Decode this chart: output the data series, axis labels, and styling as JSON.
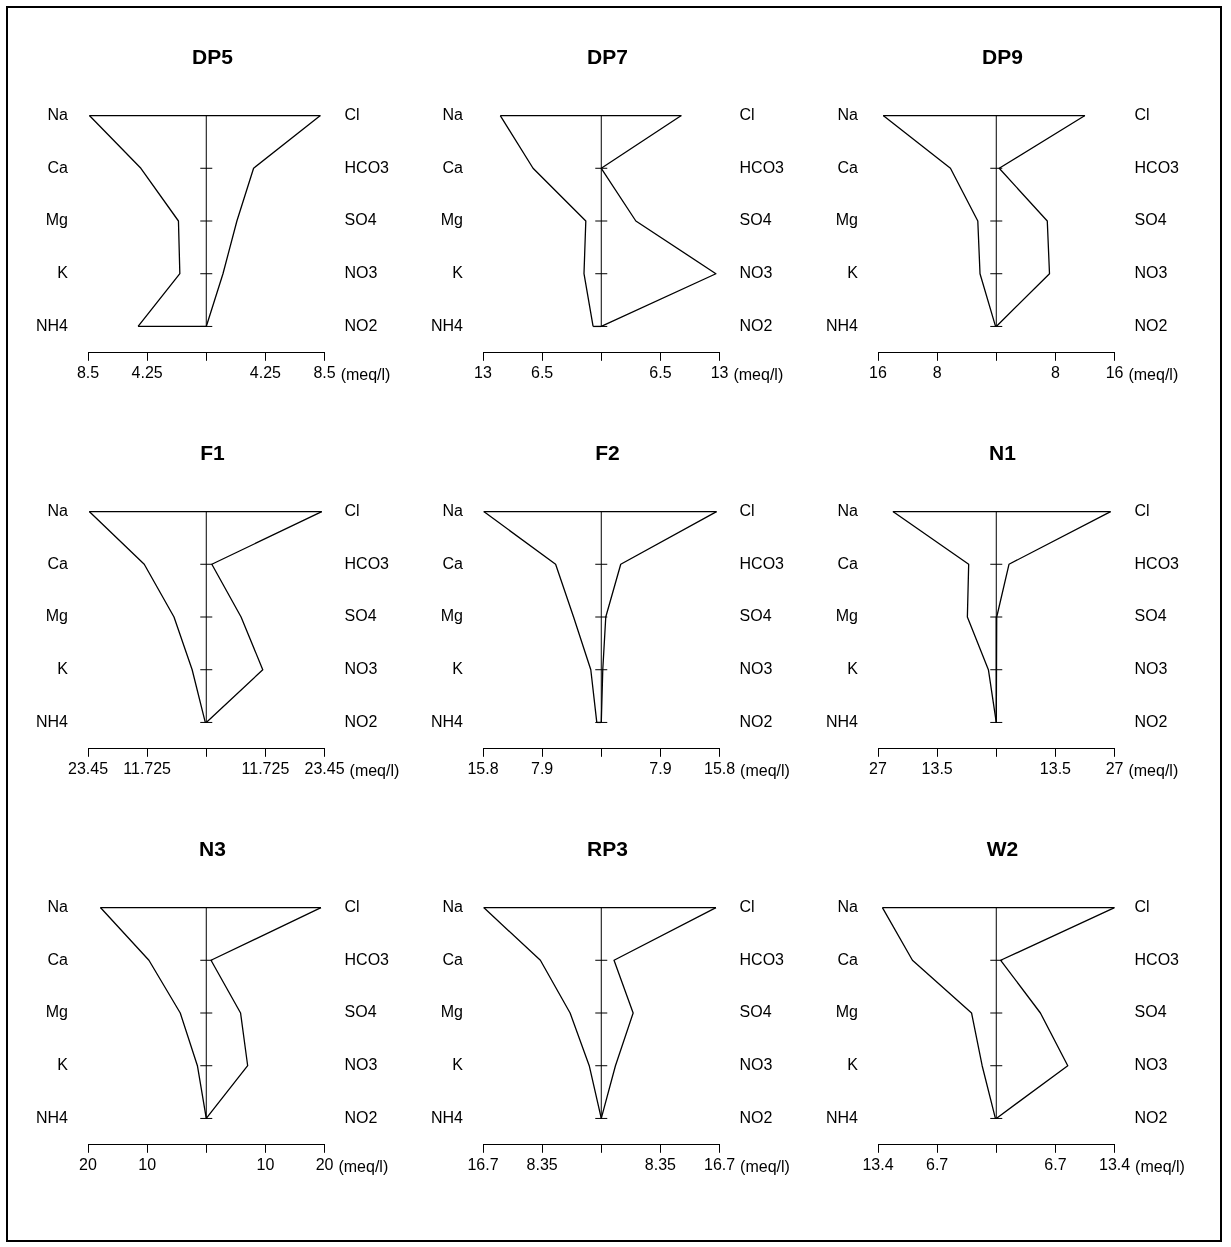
{
  "chart_data": [
    {
      "type": "line",
      "orientation": "horizontal",
      "title": "DP5",
      "xlabel": "(meq/l)",
      "marker": "none",
      "categories": [
        "Na",
        "Ca",
        "Mg",
        "K",
        "NH4"
      ],
      "y2_categories": [
        "Cl",
        "HCO3",
        "SO4",
        "NO3",
        "NO2"
      ],
      "xlim": [
        -8.5,
        8.5
      ],
      "xticks": [
        {
          "value": -8.5,
          "label": "8.5"
        },
        {
          "value": -4.25,
          "label": "4.25"
        },
        {
          "value": 0,
          "label": null
        },
        4.25,
        8.5
      ],
      "series": [
        {
          "color": "#000000",
          "values": [
            -8.4,
            -4.7,
            -2.0,
            -1.9,
            -4.9
          ]
        },
        {
          "color": "#000000",
          "values": [
            8.2,
            3.4,
            2.2,
            1.2,
            0
          ]
        }
      ]
    },
    {
      "type": "line",
      "orientation": "horizontal",
      "title": "DP7",
      "xlabel": "(meq/l)",
      "marker": "none",
      "categories": [
        "Na",
        "Ca",
        "Mg",
        "K",
        "NH4"
      ],
      "y2_categories": [
        "Cl",
        "HCO3",
        "SO4",
        "NO3",
        "NO2"
      ],
      "xlim": [
        -13,
        13
      ],
      "xticks": [
        {
          "value": -13,
          "label": "13"
        },
        {
          "value": -6.5,
          "label": "6.5"
        },
        {
          "value": 0,
          "label": null
        },
        6.5,
        13
      ],
      "series": [
        {
          "color": "#000000",
          "values": [
            -11.1,
            -7.5,
            -1.7,
            -1.9,
            -0.9
          ]
        },
        {
          "color": "#000000",
          "values": [
            8.8,
            0,
            3.8,
            12.6,
            0
          ]
        }
      ]
    },
    {
      "type": "line",
      "orientation": "horizontal",
      "title": "DP9",
      "xlabel": "(meq/l)",
      "marker": "none",
      "categories": [
        "Na",
        "Ca",
        "Mg",
        "K",
        "NH4"
      ],
      "y2_categories": [
        "Cl",
        "HCO3",
        "SO4",
        "NO3",
        "NO2"
      ],
      "xlim": [
        -16,
        16
      ],
      "xticks": [
        {
          "value": -16,
          "label": "16"
        },
        {
          "value": -8,
          "label": "8"
        },
        {
          "value": 0,
          "label": null
        },
        8,
        16
      ],
      "series": [
        {
          "color": "#000000",
          "values": [
            -15.3,
            -6.2,
            -2.5,
            -2.2,
            -0.1
          ]
        },
        {
          "color": "#000000",
          "values": [
            12.0,
            0.4,
            6.9,
            7.2,
            0
          ]
        }
      ]
    },
    {
      "type": "line",
      "orientation": "horizontal",
      "title": "F1",
      "xlabel": "(meq/l)",
      "marker": "none",
      "categories": [
        "Na",
        "Ca",
        "Mg",
        "K",
        "NH4"
      ],
      "y2_categories": [
        "Cl",
        "HCO3",
        "SO4",
        "NO3",
        "NO2"
      ],
      "xlim": [
        -23.45,
        23.45
      ],
      "xticks": [
        {
          "value": -23.45,
          "label": "23.45"
        },
        {
          "value": -11.725,
          "label": "11.725"
        },
        {
          "value": 0,
          "label": null
        },
        11.725,
        23.45
      ],
      "series": [
        {
          "color": "#000000",
          "values": [
            -23.2,
            -12.3,
            -6.4,
            -2.8,
            -0.2
          ]
        },
        {
          "color": "#000000",
          "values": [
            22.9,
            1.1,
            6.9,
            11.2,
            0
          ]
        }
      ]
    },
    {
      "type": "line",
      "orientation": "horizontal",
      "title": "F2",
      "xlabel": "(meq/l)",
      "marker": "none",
      "categories": [
        "Na",
        "Ca",
        "Mg",
        "K",
        "NH4"
      ],
      "y2_categories": [
        "Cl",
        "HCO3",
        "SO4",
        "NO3",
        "NO2"
      ],
      "xlim": [
        -15.8,
        15.8
      ],
      "xticks": [
        {
          "value": -15.8,
          "label": "15.8"
        },
        {
          "value": -7.9,
          "label": "7.9"
        },
        {
          "value": 0,
          "label": null
        },
        7.9,
        15.8
      ],
      "series": [
        {
          "color": "#000000",
          "values": [
            -15.7,
            -6.1,
            -3.7,
            -1.4,
            -0.6
          ]
        },
        {
          "color": "#000000",
          "values": [
            15.4,
            2.6,
            0.6,
            0.2,
            0
          ]
        }
      ]
    },
    {
      "type": "line",
      "orientation": "horizontal",
      "title": "N1",
      "xlabel": "(meq/l)",
      "marker": "none",
      "categories": [
        "Na",
        "Ca",
        "Mg",
        "K",
        "NH4"
      ],
      "y2_categories": [
        "Cl",
        "HCO3",
        "SO4",
        "NO3",
        "NO2"
      ],
      "xlim": [
        -27,
        27
      ],
      "xticks": [
        {
          "value": -27,
          "label": "27"
        },
        {
          "value": -13.5,
          "label": "13.5"
        },
        {
          "value": 0,
          "label": null
        },
        13.5,
        27
      ],
      "series": [
        {
          "color": "#000000",
          "values": [
            -23.6,
            -6.3,
            -6.6,
            -1.8,
            0
          ]
        },
        {
          "color": "#000000",
          "values": [
            26.1,
            2.9,
            0.1,
            0,
            0
          ]
        }
      ]
    },
    {
      "type": "line",
      "orientation": "horizontal",
      "title": "N3",
      "xlabel": "(meq/l)",
      "marker": "none",
      "categories": [
        "Na",
        "Ca",
        "Mg",
        "K",
        "NH4"
      ],
      "y2_categories": [
        "Cl",
        "HCO3",
        "SO4",
        "NO3",
        "NO2"
      ],
      "xlim": [
        -20,
        20
      ],
      "xticks": [
        {
          "value": -20,
          "label": "20"
        },
        {
          "value": -10,
          "label": "10"
        },
        {
          "value": 0,
          "label": null
        },
        10,
        20
      ],
      "series": [
        {
          "color": "#000000",
          "values": [
            -17.9,
            -9.7,
            -4.4,
            -1.5,
            0
          ]
        },
        {
          "color": "#000000",
          "values": [
            19.4,
            0.8,
            5.8,
            7.0,
            0
          ]
        }
      ]
    },
    {
      "type": "line",
      "orientation": "horizontal",
      "title": "RP3",
      "xlabel": "(meq/l)",
      "marker": "none",
      "categories": [
        "Na",
        "Ca",
        "Mg",
        "K",
        "NH4"
      ],
      "y2_categories": [
        "Cl",
        "HCO3",
        "SO4",
        "NO3",
        "NO2"
      ],
      "xlim": [
        -16.7,
        16.7
      ],
      "xticks": [
        {
          "value": -16.7,
          "label": "16.7"
        },
        {
          "value": -8.35,
          "label": "8.35"
        },
        {
          "value": 0,
          "label": null
        },
        8.35,
        16.7
      ],
      "series": [
        {
          "color": "#000000",
          "values": [
            -16.6,
            -8.6,
            -4.4,
            -1.7,
            0
          ]
        },
        {
          "color": "#000000",
          "values": [
            16.2,
            1.8,
            4.5,
            2.0,
            0
          ]
        }
      ]
    },
    {
      "type": "line",
      "orientation": "horizontal",
      "title": "W2",
      "xlabel": "(meq/l)",
      "marker": "none",
      "categories": [
        "Na",
        "Ca",
        "Mg",
        "K",
        "NH4"
      ],
      "y2_categories": [
        "Cl",
        "HCO3",
        "SO4",
        "NO3",
        "NO2"
      ],
      "xlim": [
        -13.4,
        13.4
      ],
      "xticks": [
        {
          "value": -13.4,
          "label": "13.4"
        },
        {
          "value": -6.7,
          "label": "6.7"
        },
        {
          "value": 0,
          "label": null
        },
        6.7,
        13.4
      ],
      "series": [
        {
          "color": "#000000",
          "values": [
            -12.9,
            -9.5,
            -2.8,
            -1.6,
            -0.1
          ]
        },
        {
          "color": "#000000",
          "values": [
            13.4,
            0.5,
            5.0,
            8.1,
            0
          ]
        }
      ]
    }
  ]
}
